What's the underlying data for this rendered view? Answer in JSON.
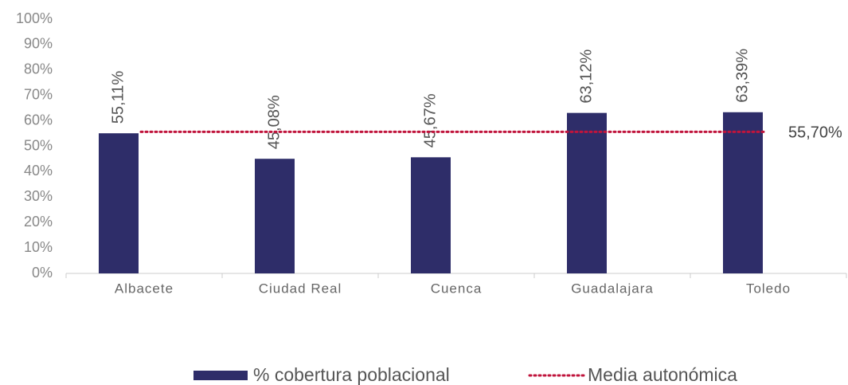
{
  "chart_data": {
    "type": "bar",
    "categories": [
      "Albacete",
      "Ciudad Real",
      "Cuenca",
      "Guadalajara",
      "Toledo"
    ],
    "series": [
      {
        "name": "% cobertura poblacional",
        "color": "#2e2d69",
        "values": [
          55.11,
          45.08,
          45.67,
          63.12,
          63.39
        ],
        "value_labels": [
          "55,11%",
          "45,08%",
          "45,67%",
          "63,12%",
          "63,39%"
        ]
      }
    ],
    "reference_line": {
      "name": "Media autonómica",
      "value": 55.7,
      "value_label": "55,70%",
      "color": "#c0143c"
    },
    "ylim": [
      0,
      100
    ],
    "yticks": [
      {
        "value": 0,
        "label": "0%"
      },
      {
        "value": 10,
        "label": "10%"
      },
      {
        "value": 20,
        "label": "20%"
      },
      {
        "value": 30,
        "label": "30%"
      },
      {
        "value": 40,
        "label": "40%"
      },
      {
        "value": 50,
        "label": "50%"
      },
      {
        "value": 60,
        "label": "60%"
      },
      {
        "value": 70,
        "label": "70%"
      },
      {
        "value": 80,
        "label": "80%"
      },
      {
        "value": 90,
        "label": "90%"
      },
      {
        "value": 100,
        "label": "100%"
      }
    ],
    "grid": false,
    "legend": "bottom"
  }
}
